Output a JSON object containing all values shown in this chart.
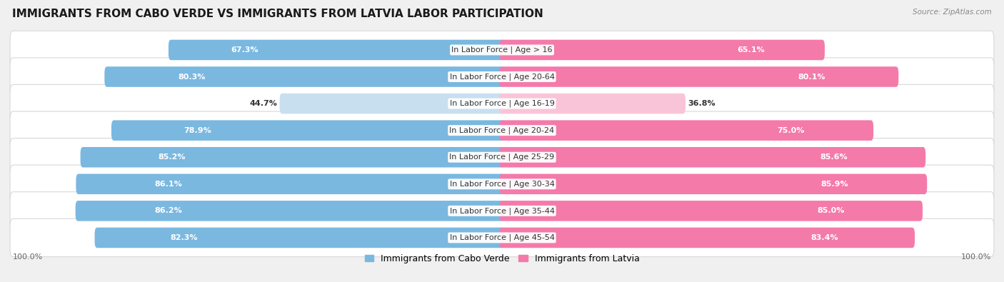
{
  "title": "IMMIGRANTS FROM CABO VERDE VS IMMIGRANTS FROM LATVIA LABOR PARTICIPATION",
  "source": "Source: ZipAtlas.com",
  "categories": [
    "In Labor Force | Age > 16",
    "In Labor Force | Age 20-64",
    "In Labor Force | Age 16-19",
    "In Labor Force | Age 20-24",
    "In Labor Force | Age 25-29",
    "In Labor Force | Age 30-34",
    "In Labor Force | Age 35-44",
    "In Labor Force | Age 45-54"
  ],
  "cabo_verde_values": [
    67.3,
    80.3,
    44.7,
    78.9,
    85.2,
    86.1,
    86.2,
    82.3
  ],
  "latvia_values": [
    65.1,
    80.1,
    36.8,
    75.0,
    85.6,
    85.9,
    85.0,
    83.4
  ],
  "cabo_verde_color": "#7ab8e0",
  "cabo_verde_color_light": "#c8dff0",
  "latvia_color": "#f47aaa",
  "latvia_color_light": "#f9c4d8",
  "bg_color": "#f0f0f0",
  "row_bg_color": "#ffffff",
  "row_border_color": "#d8d8d8",
  "title_fontsize": 11,
  "label_fontsize": 8,
  "value_fontsize": 8,
  "legend_fontsize": 9,
  "axis_label_fontsize": 8
}
